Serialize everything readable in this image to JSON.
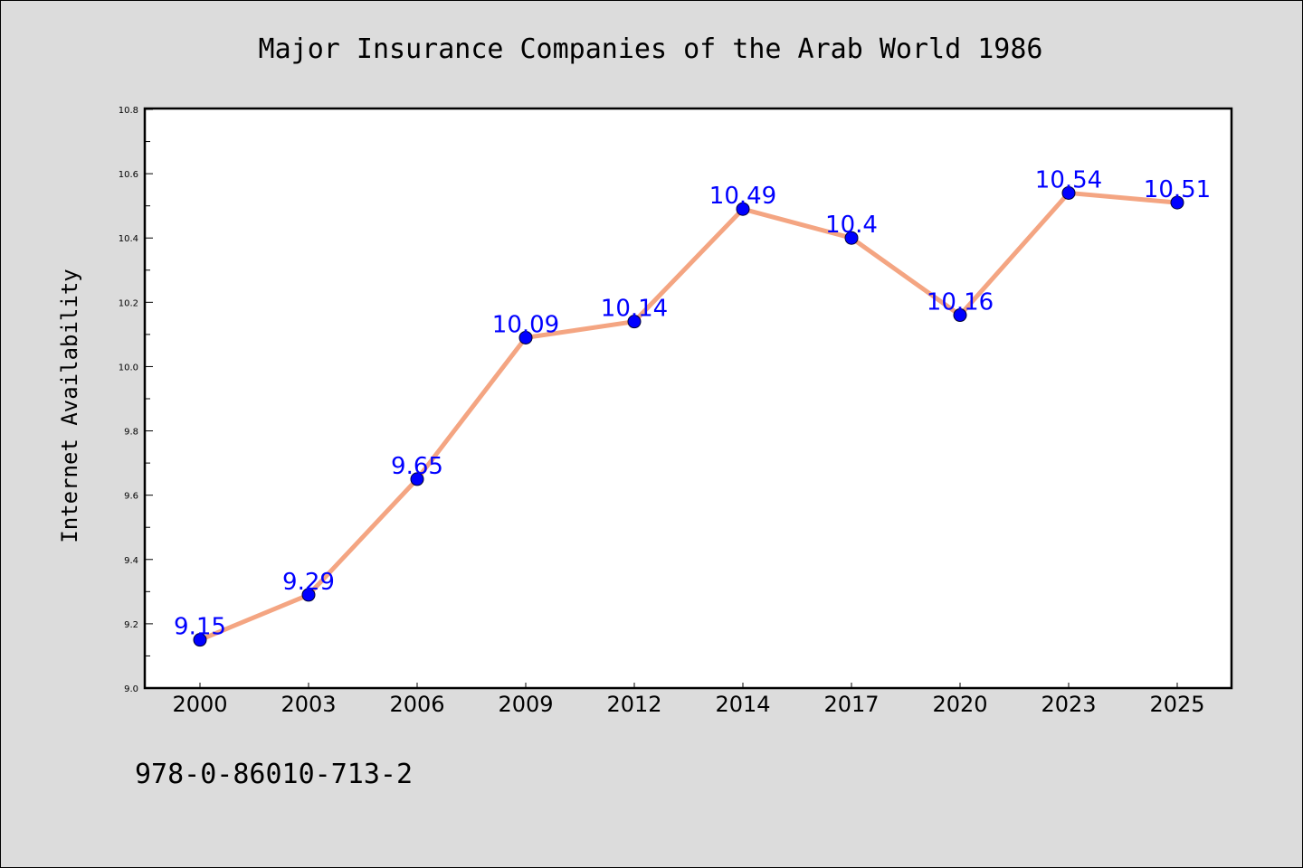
{
  "chart_data": {
    "type": "line",
    "title": "Major Insurance Companies of the Arab World 1986",
    "xlabel": "",
    "ylabel": "Internet Availability",
    "categories": [
      "2000",
      "2003",
      "2006",
      "2009",
      "2012",
      "2014",
      "2017",
      "2020",
      "2023",
      "2025"
    ],
    "series": [
      {
        "values": [
          9.15,
          9.29,
          9.65,
          10.09,
          10.14,
          10.49,
          10.4,
          10.16,
          10.54,
          10.51
        ],
        "labels": [
          "9.15",
          "9.29",
          "9.65",
          "10.09",
          "10.14",
          "10.49",
          "10.4",
          "10.16",
          "10.54",
          "10.51"
        ]
      }
    ],
    "ylim": [
      9.0,
      10.8
    ],
    "yticks": [
      "9.0",
      "9.2",
      "9.4",
      "9.6",
      "9.8",
      "10.0",
      "10.2",
      "10.4",
      "10.6",
      "10.8"
    ],
    "grid": false,
    "legend": "none",
    "colors": {
      "line": "#f4a582",
      "marker": "#0000ff",
      "data_label": "#0000ff",
      "figure_background": "#dcdcdc",
      "plot_background": "#ffffff"
    },
    "annotation": "978-0-86010-713-2"
  }
}
